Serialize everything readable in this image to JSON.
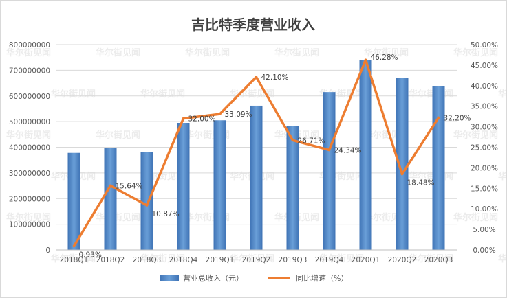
{
  "watermark": "华尔街见闻",
  "chart_data": {
    "type": "bar",
    "title": "吉比特季度营业收入",
    "categories": [
      "2018Q1",
      "2018Q2",
      "2018Q3",
      "2018Q4",
      "2019Q1",
      "2019Q2",
      "2019Q3",
      "2019Q4",
      "2020Q1",
      "2020Q2",
      "2020Q3"
    ],
    "series": [
      {
        "name": "营业总收入（元）",
        "type": "bar",
        "axis": "left",
        "color": "#4f86c6",
        "values": [
          378000000,
          397000000,
          380000000,
          495000000,
          505000000,
          562000000,
          483000000,
          615000000,
          740000000,
          670000000,
          638000000
        ]
      },
      {
        "name": "同比增速（%）",
        "type": "line",
        "axis": "right",
        "color": "#ed7d31",
        "values": [
          0.93,
          15.64,
          10.87,
          32.0,
          33.09,
          42.1,
          26.71,
          24.34,
          46.28,
          18.48,
          32.2
        ],
        "labels": [
          "0.93%",
          "15.64%",
          "10.87%",
          "32.00%",
          "33.09%",
          "42.10%",
          "26.71%",
          "24.34%",
          "46.28%",
          "18.48%",
          "32.20%"
        ]
      }
    ],
    "y_left": {
      "range": [
        0,
        800000000
      ],
      "ticks": [
        "0",
        "100000000",
        "200000000",
        "300000000",
        "400000000",
        "500000000",
        "600000000",
        "700000000",
        "800000000"
      ]
    },
    "y_right": {
      "range": [
        0,
        50
      ],
      "ticks": [
        "0.00%",
        "5.00%",
        "10.00%",
        "15.00%",
        "20.00%",
        "25.00%",
        "30.00%",
        "35.00%",
        "40.00%",
        "45.00%",
        "50.00%"
      ]
    },
    "grid": true,
    "legend_position": "bottom"
  }
}
